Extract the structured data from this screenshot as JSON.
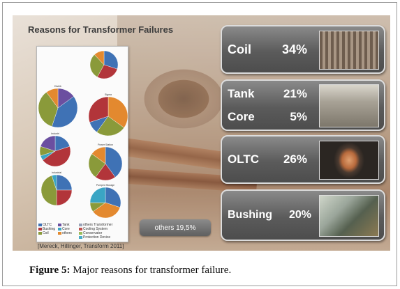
{
  "slide": {
    "title": "Reasons for Transformer Failures",
    "source": "[Mereck, Hillinger, Transform 2011]",
    "others_label": "others 19,5%"
  },
  "cards": [
    {
      "rows": [
        {
          "label": "Coil",
          "value": "34%"
        }
      ],
      "image_icon": "coil-photo"
    },
    {
      "rows": [
        {
          "label": "Tank",
          "value": "21%"
        },
        {
          "label": "Core",
          "value": "5%"
        }
      ],
      "image_icon": "tank-photo"
    },
    {
      "rows": [
        {
          "label": "OLTC",
          "value": "26%"
        }
      ],
      "image_icon": "oltc-photo"
    },
    {
      "rows": [
        {
          "label": "Bushing",
          "value": "20%"
        }
      ],
      "image_icon": "bushing-photo"
    }
  ],
  "pie_panel": {
    "pie_titles": [
      "",
      "Distrib",
      "Sigma",
      "Industri",
      "Power Station",
      "Industrial",
      "Pumped Storage"
    ],
    "legend": [
      {
        "label": "OLTC",
        "color": "#3f72b5"
      },
      {
        "label": "Bushing",
        "color": "#b2353a"
      },
      {
        "label": "Coil",
        "color": "#8a9a3a"
      },
      {
        "label": "Tank",
        "color": "#6b4fa0"
      },
      {
        "label": "Core",
        "color": "#3aa5c4"
      },
      {
        "label": "others",
        "color": "#e3892f"
      },
      {
        "label": "others Transformer",
        "color": "#9aa3b8"
      },
      {
        "label": "Cooling System",
        "color": "#c0504d"
      },
      {
        "label": "Conservator",
        "color": "#9bbb59"
      },
      {
        "label": "Protection Device",
        "color": "#4bacc6"
      }
    ]
  },
  "caption": {
    "label": "Figure 5:",
    "text": "Major reasons for transformer failure."
  },
  "colors": {
    "card_bg": "#5b5b5b",
    "card_text": "#ffffff"
  }
}
